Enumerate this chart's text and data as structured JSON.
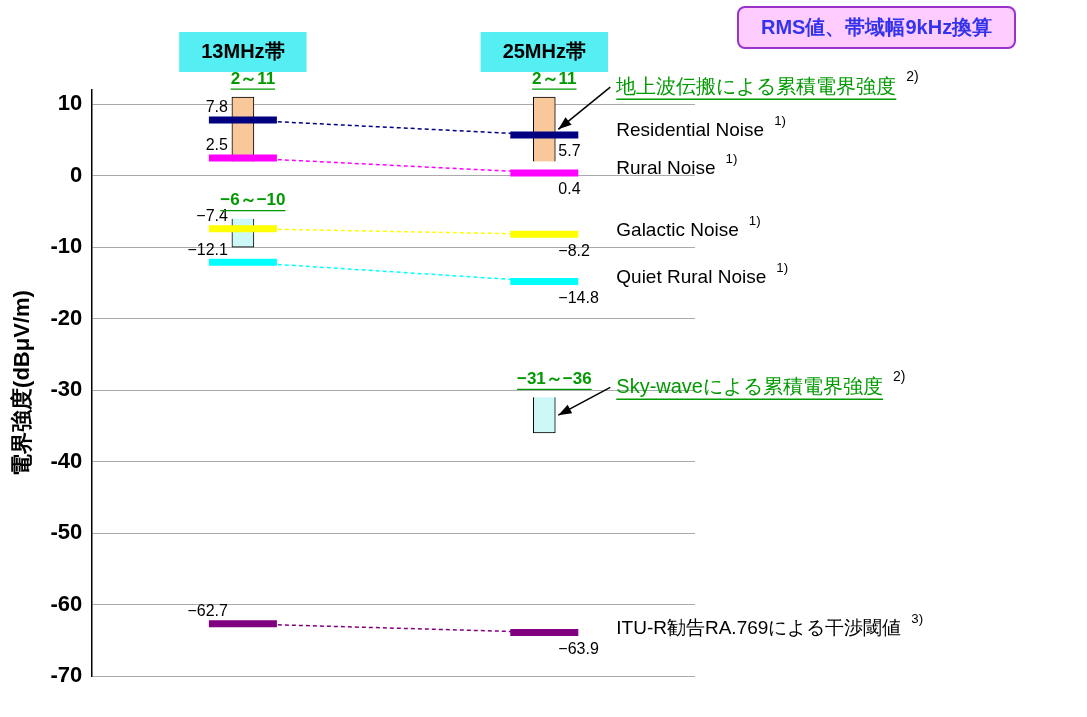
{
  "chart_data": {
    "type": "line",
    "subtitle": "RMS値、帯域幅9kHz換算",
    "ylabel": "電界強度(dBμV/m)",
    "categories": [
      "13MHz帯",
      "25MHz帯"
    ],
    "ylim": [
      -70,
      12
    ],
    "yticks": [
      10,
      0,
      -10,
      -20,
      -30,
      -40,
      -50,
      -60,
      -70
    ],
    "grid": "y",
    "legend": "right",
    "line_style": "dashed",
    "series": [
      {
        "name": "Residential Noise $^{1)}$",
        "color": "#000080",
        "values": [
          7.8,
          5.7
        ],
        "value_labels": [
          "7.8",
          "5.7"
        ]
      },
      {
        "name": "Rural Noise $^{1)}$",
        "color": "#ff00ff",
        "values": [
          2.5,
          0.4
        ],
        "value_labels": [
          "2.5",
          "0.4"
        ]
      },
      {
        "name": "Galactic Noise $^{1)}$",
        "color": "#ffff00",
        "values": [
          -7.4,
          -8.2
        ],
        "value_labels": [
          "−7.4",
          "−8.2"
        ]
      },
      {
        "name": "Quiet Rural Noise $^{1)}$",
        "color": "#00ffff",
        "values": [
          -12.1,
          -14.8
        ],
        "value_labels": [
          "−12.1",
          "−14.8"
        ]
      },
      {
        "name": "ITU-R勧告RA.769による干渉閾値 $^{3)}$",
        "color": "#800080",
        "values": [
          -62.7,
          -63.9
        ],
        "value_labels": [
          "−62.7",
          "−63.9"
        ]
      },
      {
        "type": "bar",
        "name": "地上波伝搬による累積電界強度 $^{2)}$",
        "color": "#f8c89a",
        "base": [
          2,
          2
        ],
        "values": [
          9,
          9
        ]
      },
      {
        "type": "bar",
        "name": "Sky-waveによる累積電界強度 $^{2)}$",
        "color": "#ccf8f8",
        "base": [
          -10,
          -36
        ],
        "values": [
          4,
          5
        ]
      }
    ],
    "annotations": [
      {
        "text": "2～11",
        "x": "13MHz帯",
        "y": 11
      },
      {
        "text": "2～11",
        "x": "25MHz帯",
        "y": 11
      },
      {
        "text": "−6～−10",
        "x": "13MHz帯",
        "y": -6
      },
      {
        "text": "−31～−36",
        "x": "25MHz帯",
        "y": -31
      }
    ]
  }
}
